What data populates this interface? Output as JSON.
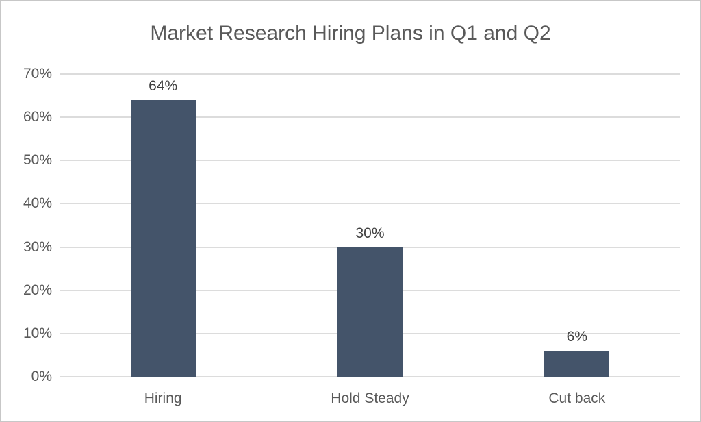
{
  "chart_data": {
    "type": "bar",
    "title": "Market Research Hiring Plans in Q1 and Q2",
    "categories": [
      "Hiring",
      "Hold Steady",
      "Cut back"
    ],
    "values": [
      64,
      30,
      6
    ],
    "data_labels": [
      "64%",
      "30%",
      "6%"
    ],
    "ytick_labels": [
      "0%",
      "10%",
      "20%",
      "30%",
      "40%",
      "50%",
      "60%",
      "70%"
    ],
    "ylim": [
      0,
      70
    ],
    "ytick_step": 10,
    "xlabel": "",
    "ylabel": "",
    "grid": true,
    "legend": "none",
    "colors": {
      "bar": "#44546A",
      "title_text": "#595959",
      "axis_tick_text": "#595959",
      "data_label_text": "#404040",
      "gridline": "#DCDCDC",
      "background": "#FFFFFF",
      "border": "#C7C7C7"
    }
  }
}
